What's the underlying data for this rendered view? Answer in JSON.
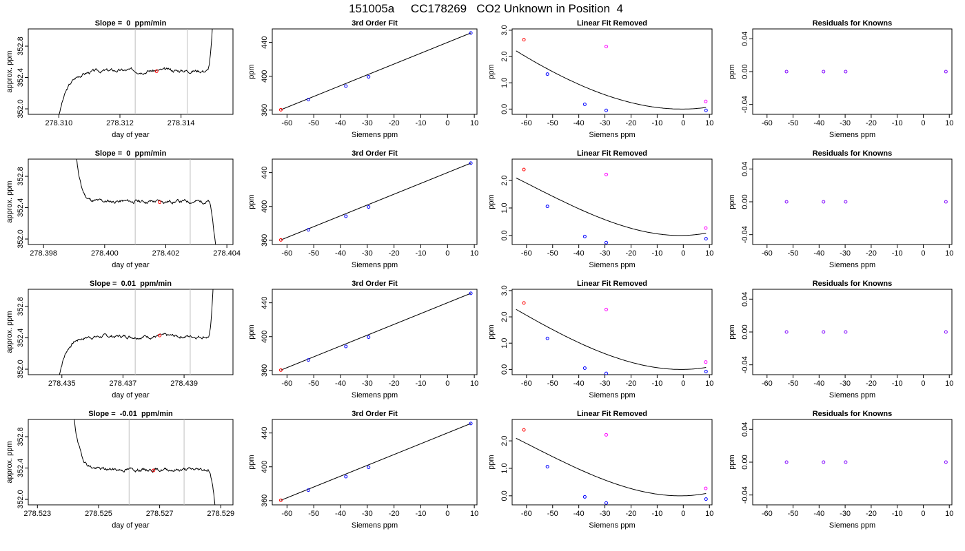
{
  "figure": {
    "title": "151005a     CC178269   CO2 Unknown in Position  4"
  },
  "styles": {
    "trace_color": "#000000",
    "point_red": "#ff0000",
    "point_blue": "#0000ff",
    "point_magenta": "#ff00ff",
    "vline_color": "#bebebe",
    "residual_point": "#7f00ff"
  },
  "chart_data": [
    {
      "type": "line",
      "panel": "time-series",
      "row": 0,
      "title": "Slope =  0  ppm/min",
      "xlabel": "day of year",
      "ylabel": "approx. ppm",
      "xlim": [
        278.309,
        278.3157
      ],
      "ylim": [
        351.93,
        353.02
      ],
      "xticks": [
        "278.310",
        "278.312",
        "278.314"
      ],
      "xtick_values": [
        278.31,
        278.312,
        278.314
      ],
      "yticks": [
        "352.0",
        "352.4",
        "352.8"
      ],
      "ytick_values": [
        352.0,
        352.4,
        352.8
      ],
      "vlines": [
        278.3125,
        278.3142
      ],
      "trace": {
        "x0": 278.31,
        "x1": 278.3151,
        "start": 351.9,
        "level": 352.49,
        "end": 353.6,
        "rise": 0.06,
        "drop": 0.05,
        "seed": 3
      },
      "point": {
        "x": 278.3132,
        "y": 352.48
      }
    },
    {
      "type": "line",
      "panel": "fit",
      "row": 0,
      "title": "3rd Order Fit",
      "xlabel": "Siemens ppm",
      "ylabel": "ppm",
      "xlim": [
        -65.5,
        11
      ],
      "ylim": [
        355,
        456
      ],
      "xticks": [
        "-60",
        "-50",
        "-40",
        "-30",
        "-20",
        "-10",
        "0",
        "10"
      ],
      "xtick_values": [
        -60,
        -50,
        -40,
        -30,
        -20,
        -10,
        0,
        10
      ],
      "yticks": [
        "360",
        "400",
        "440"
      ],
      "ytick_values": [
        360,
        400,
        440
      ],
      "line": {
        "x": [
          -62.3,
          8.7
        ],
        "y": [
          360.4,
          451.2
        ]
      },
      "points": [
        {
          "x": -62.3,
          "y": 360.4,
          "color": "red"
        },
        {
          "x": -52.0,
          "y": 372.4,
          "color": "blue"
        },
        {
          "x": -38.0,
          "y": 388.4,
          "color": "blue"
        },
        {
          "x": -29.5,
          "y": 399.4,
          "color": "blue"
        },
        {
          "x": 8.7,
          "y": 451.2,
          "color": "blue"
        }
      ]
    },
    {
      "type": "line",
      "panel": "linear-removed",
      "row": 0,
      "title": "Linear Fit Removed",
      "xlabel": "Siemens ppm",
      "ylabel": "ppm",
      "xlim": [
        -65.5,
        11
      ],
      "ylim": [
        -0.2,
        3.05
      ],
      "xticks": [
        "-60",
        "-50",
        "-40",
        "-30",
        "-20",
        "-10",
        "0",
        "10"
      ],
      "xtick_values": [
        -60,
        -50,
        -40,
        -30,
        -20,
        -10,
        0,
        10
      ],
      "yticks": [
        "0.0",
        "1.0",
        "2.0",
        "3.0"
      ],
      "ytick_values": [
        0,
        1,
        2,
        3
      ],
      "curve": {
        "c": [
          0,
          0.00076,
          0.0007,
          2.3e-06
        ],
        "x0": -64,
        "x1": 8.7
      },
      "points": [
        {
          "x": -61.0,
          "y": 2.64,
          "color": "red"
        },
        {
          "x": -52.0,
          "y": 1.33,
          "color": "blue"
        },
        {
          "x": -37.7,
          "y": 0.18,
          "color": "blue"
        },
        {
          "x": -29.5,
          "y": -0.05,
          "color": "blue"
        },
        {
          "x": 8.7,
          "y": -0.05,
          "color": "blue"
        },
        {
          "x": -29.5,
          "y": 2.38,
          "color": "magenta"
        },
        {
          "x": 8.6,
          "y": 0.29,
          "color": "magenta"
        }
      ]
    },
    {
      "type": "scatter",
      "panel": "residuals",
      "row": 0,
      "title": "Residuals for Knowns",
      "xlabel": "Siemens ppm",
      "ylabel": "ppm",
      "xlim": [
        -65.5,
        11
      ],
      "ylim": [
        -0.052,
        0.052
      ],
      "xticks": [
        "-60",
        "-50",
        "-40",
        "-30",
        "-20",
        "-10",
        "0",
        "10"
      ],
      "xtick_values": [
        -60,
        -50,
        -40,
        -30,
        -20,
        -10,
        0,
        10
      ],
      "yticks": [
        "-0.04",
        "0.00",
        "0.04"
      ],
      "ytick_values": [
        -0.04,
        0,
        0.04
      ],
      "points": [
        {
          "x": -52.5,
          "y": 0
        },
        {
          "x": -38.3,
          "y": 0
        },
        {
          "x": -29.8,
          "y": 0
        },
        {
          "x": 8.7,
          "y": 0
        }
      ]
    },
    {
      "type": "line",
      "panel": "time-series",
      "row": 1,
      "title": "Slope =  0  ppm/min",
      "xlabel": "day of year",
      "ylabel": "approx. ppm",
      "xlim": [
        278.3975,
        278.4042
      ],
      "ylim": [
        351.93,
        353.02
      ],
      "xticks": [
        "278.398",
        "278.400",
        "278.402",
        "278.404"
      ],
      "xtick_values": [
        278.398,
        278.4,
        278.402,
        278.404
      ],
      "yticks": [
        "352.0",
        "352.4",
        "352.8"
      ],
      "ytick_values": [
        352.0,
        352.4,
        352.8
      ],
      "vlines": [
        278.401,
        278.4028
      ],
      "trace": {
        "x0": 278.399,
        "x1": 278.4037,
        "start": 353.5,
        "level": 352.48,
        "end": 351.6,
        "fall": 0.03,
        "dropAt": 278.4034,
        "seed": 11
      },
      "point": {
        "x": 278.4018,
        "y": 352.47
      }
    },
    {
      "type": "line",
      "panel": "fit",
      "row": 1,
      "title": "3rd Order Fit",
      "xlabel": "Siemens ppm",
      "ylabel": "ppm",
      "xlim": [
        -65.5,
        11
      ],
      "ylim": [
        355,
        456
      ],
      "xticks": [
        "-60",
        "-50",
        "-40",
        "-30",
        "-20",
        "-10",
        "0",
        "10"
      ],
      "xtick_values": [
        -60,
        -50,
        -40,
        -30,
        -20,
        -10,
        0,
        10
      ],
      "yticks": [
        "360",
        "400",
        "440"
      ],
      "ytick_values": [
        360,
        400,
        440
      ],
      "line": {
        "x": [
          -62.3,
          8.7
        ],
        "y": [
          360.4,
          451.2
        ]
      },
      "points": [
        {
          "x": -62.3,
          "y": 360.4,
          "color": "red"
        },
        {
          "x": -52.0,
          "y": 372.4,
          "color": "blue"
        },
        {
          "x": -38.0,
          "y": 388.4,
          "color": "blue"
        },
        {
          "x": -29.5,
          "y": 399.4,
          "color": "blue"
        },
        {
          "x": 8.7,
          "y": 451.2,
          "color": "blue"
        }
      ]
    },
    {
      "type": "line",
      "panel": "linear-removed",
      "row": 1,
      "title": "Linear Fit Removed",
      "xlabel": "Siemens ppm",
      "ylabel": "ppm",
      "xlim": [
        -65.5,
        11
      ],
      "ylim": [
        -0.33,
        2.78
      ],
      "xticks": [
        "-60",
        "-50",
        "-40",
        "-30",
        "-20",
        "-10",
        "0",
        "10"
      ],
      "xtick_values": [
        -60,
        -50,
        -40,
        -30,
        -20,
        -10,
        0,
        10
      ],
      "yticks": [
        "0.0",
        "1.0",
        "2.0"
      ],
      "ytick_values": [
        0,
        1,
        2
      ],
      "curve": {
        "c": [
          0,
          0.002,
          0.00085,
          4.8e-06
        ],
        "x0": -64,
        "x1": 8.7
      },
      "points": [
        {
          "x": -61.0,
          "y": 2.4,
          "color": "red"
        },
        {
          "x": -52.0,
          "y": 1.06,
          "color": "blue"
        },
        {
          "x": -37.7,
          "y": -0.04,
          "color": "blue"
        },
        {
          "x": -29.5,
          "y": -0.26,
          "color": "blue"
        },
        {
          "x": 8.7,
          "y": -0.12,
          "color": "blue"
        },
        {
          "x": -29.5,
          "y": 2.22,
          "color": "magenta"
        },
        {
          "x": 8.6,
          "y": 0.27,
          "color": "magenta"
        }
      ]
    },
    {
      "type": "scatter",
      "panel": "residuals",
      "row": 1,
      "title": "Residuals for Knowns",
      "xlabel": "Siemens ppm",
      "ylabel": "ppm",
      "xlim": [
        -65.5,
        11
      ],
      "ylim": [
        -0.052,
        0.052
      ],
      "xticks": [
        "-60",
        "-50",
        "-40",
        "-30",
        "-20",
        "-10",
        "0",
        "10"
      ],
      "xtick_values": [
        -60,
        -50,
        -40,
        -30,
        -20,
        -10,
        0,
        10
      ],
      "yticks": [
        "-0.04",
        "0.00",
        "0.04"
      ],
      "ytick_values": [
        -0.04,
        0,
        0.04
      ],
      "points": [
        {
          "x": -52.5,
          "y": 0
        },
        {
          "x": -38.3,
          "y": 0
        },
        {
          "x": -29.8,
          "y": 0
        },
        {
          "x": 8.7,
          "y": 0
        }
      ]
    },
    {
      "type": "line",
      "panel": "time-series",
      "row": 2,
      "title": "Slope =  0.01  ppm/min",
      "xlabel": "day of year",
      "ylabel": "approx. ppm",
      "xlim": [
        278.4339,
        278.4406
      ],
      "ylim": [
        351.93,
        353.02
      ],
      "xticks": [
        "278.435",
        "278.437",
        "278.439"
      ],
      "xtick_values": [
        278.435,
        278.437,
        278.439
      ],
      "yticks": [
        "352.0",
        "352.4",
        "352.8"
      ],
      "ytick_values": [
        352.0,
        352.4,
        352.8
      ],
      "vlines": [
        278.4374,
        278.4392
      ],
      "trace": {
        "x0": 278.4349,
        "x1": 278.44,
        "start": 351.9,
        "level": 352.42,
        "end": 353.6,
        "rise": 0.05,
        "drop": 0.04,
        "seed": 7
      },
      "point": {
        "x": 278.4382,
        "y": 352.43
      }
    },
    {
      "type": "line",
      "panel": "fit",
      "row": 2,
      "title": "3rd Order Fit",
      "xlabel": "Siemens ppm",
      "ylabel": "ppm",
      "xlim": [
        -65.5,
        11
      ],
      "ylim": [
        355,
        456
      ],
      "xticks": [
        "-60",
        "-50",
        "-40",
        "-30",
        "-20",
        "-10",
        "0",
        "10"
      ],
      "xtick_values": [
        -60,
        -50,
        -40,
        -30,
        -20,
        -10,
        0,
        10
      ],
      "yticks": [
        "360",
        "400",
        "440"
      ],
      "ytick_values": [
        360,
        400,
        440
      ],
      "line": {
        "x": [
          -62.3,
          8.7
        ],
        "y": [
          360.4,
          451.2
        ]
      },
      "points": [
        {
          "x": -62.3,
          "y": 360.4,
          "color": "red"
        },
        {
          "x": -52.0,
          "y": 372.4,
          "color": "blue"
        },
        {
          "x": -38.0,
          "y": 388.4,
          "color": "blue"
        },
        {
          "x": -29.5,
          "y": 399.4,
          "color": "blue"
        },
        {
          "x": 8.7,
          "y": 451.2,
          "color": "blue"
        }
      ]
    },
    {
      "type": "line",
      "panel": "linear-removed",
      "row": 2,
      "title": "Linear Fit Removed",
      "xlabel": "Siemens ppm",
      "ylabel": "ppm",
      "xlim": [
        -65.5,
        11
      ],
      "ylim": [
        -0.2,
        3.05
      ],
      "xticks": [
        "-60",
        "-50",
        "-40",
        "-30",
        "-20",
        "-10",
        "0",
        "10"
      ],
      "xtick_values": [
        -60,
        -50,
        -40,
        -30,
        -20,
        -10,
        0,
        10
      ],
      "yticks": [
        "0.0",
        "1.0",
        "2.0",
        "3.0"
      ],
      "ytick_values": [
        0,
        1,
        2,
        3
      ],
      "curve": {
        "c": [
          0,
          0.0012,
          0.00082,
          3.8e-06
        ],
        "x0": -64,
        "x1": 8.7
      },
      "points": [
        {
          "x": -61.0,
          "y": 2.53,
          "color": "red"
        },
        {
          "x": -52.0,
          "y": 1.18,
          "color": "blue"
        },
        {
          "x": -37.7,
          "y": 0.05,
          "color": "blue"
        },
        {
          "x": -29.5,
          "y": -0.15,
          "color": "blue"
        },
        {
          "x": 8.7,
          "y": -0.08,
          "color": "blue"
        },
        {
          "x": -29.5,
          "y": 2.28,
          "color": "magenta"
        },
        {
          "x": 8.6,
          "y": 0.28,
          "color": "magenta"
        }
      ]
    },
    {
      "type": "scatter",
      "panel": "residuals",
      "row": 2,
      "title": "Residuals for Knowns",
      "xlabel": "Siemens ppm",
      "ylabel": "ppm",
      "xlim": [
        -65.5,
        11
      ],
      "ylim": [
        -0.052,
        0.052
      ],
      "xticks": [
        "-60",
        "-50",
        "-40",
        "-30",
        "-20",
        "-10",
        "0",
        "10"
      ],
      "xtick_values": [
        -60,
        -50,
        -40,
        -30,
        -20,
        -10,
        0,
        10
      ],
      "yticks": [
        "-0.04",
        "0.00",
        "0.04"
      ],
      "ytick_values": [
        -0.04,
        0,
        0.04
      ],
      "points": [
        {
          "x": -52.5,
          "y": 0
        },
        {
          "x": -38.3,
          "y": 0
        },
        {
          "x": -29.8,
          "y": 0
        },
        {
          "x": 8.7,
          "y": 0
        }
      ]
    },
    {
      "type": "line",
      "panel": "time-series",
      "row": 3,
      "title": "Slope =  -0.01  ppm/min",
      "xlabel": "day of year",
      "ylabel": "approx. ppm",
      "xlim": [
        278.5227,
        278.5294
      ],
      "ylim": [
        351.93,
        353.02
      ],
      "xticks": [
        "278.523",
        "278.525",
        "278.527",
        "278.529"
      ],
      "xtick_values": [
        278.523,
        278.525,
        278.527,
        278.529
      ],
      "yticks": [
        "352.0",
        "352.4",
        "352.8"
      ],
      "ytick_values": [
        352.0,
        352.4,
        352.8
      ],
      "vlines": [
        278.526,
        278.5278
      ],
      "trace": {
        "x0": 278.5241,
        "x1": 278.5289,
        "start": 353.5,
        "level": 352.38,
        "end": 351.6,
        "fall": 0.04,
        "dropAt": 278.5286,
        "seed": 19
      },
      "point": {
        "x": 278.5268,
        "y": 352.37
      }
    },
    {
      "type": "line",
      "panel": "fit",
      "row": 3,
      "title": "3rd Order Fit",
      "xlabel": "Siemens ppm",
      "ylabel": "ppm",
      "xlim": [
        -65.5,
        11
      ],
      "ylim": [
        355,
        456
      ],
      "xticks": [
        "-60",
        "-50",
        "-40",
        "-30",
        "-20",
        "-10",
        "0",
        "10"
      ],
      "xtick_values": [
        -60,
        -50,
        -40,
        -30,
        -20,
        -10,
        0,
        10
      ],
      "yticks": [
        "360",
        "400",
        "440"
      ],
      "ytick_values": [
        360,
        400,
        440
      ],
      "line": {
        "x": [
          -62.3,
          8.7
        ],
        "y": [
          360.4,
          451.2
        ]
      },
      "points": [
        {
          "x": -62.3,
          "y": 360.4,
          "color": "red"
        },
        {
          "x": -52.0,
          "y": 372.4,
          "color": "blue"
        },
        {
          "x": -38.0,
          "y": 388.4,
          "color": "blue"
        },
        {
          "x": -29.5,
          "y": 399.4,
          "color": "blue"
        },
        {
          "x": 8.7,
          "y": 451.2,
          "color": "blue"
        }
      ]
    },
    {
      "type": "line",
      "panel": "linear-removed",
      "row": 3,
      "title": "Linear Fit Removed",
      "xlabel": "Siemens ppm",
      "ylabel": "ppm",
      "xlim": [
        -65.5,
        11
      ],
      "ylim": [
        -0.33,
        2.78
      ],
      "xticks": [
        "-60",
        "-50",
        "-40",
        "-30",
        "-20",
        "-10",
        "0",
        "10"
      ],
      "xtick_values": [
        -60,
        -50,
        -40,
        -30,
        -20,
        -10,
        0,
        10
      ],
      "yticks": [
        "0.0",
        "1.0",
        "2.0"
      ],
      "ytick_values": [
        0,
        1,
        2
      ],
      "curve": {
        "c": [
          0,
          0.002,
          0.00085,
          4.8e-06
        ],
        "x0": -64,
        "x1": 8.7
      },
      "points": [
        {
          "x": -61.0,
          "y": 2.4,
          "color": "red"
        },
        {
          "x": -52.0,
          "y": 1.06,
          "color": "blue"
        },
        {
          "x": -37.7,
          "y": -0.04,
          "color": "blue"
        },
        {
          "x": -29.5,
          "y": -0.26,
          "color": "blue"
        },
        {
          "x": 8.7,
          "y": -0.12,
          "color": "blue"
        },
        {
          "x": -29.5,
          "y": 2.22,
          "color": "magenta"
        },
        {
          "x": 8.6,
          "y": 0.27,
          "color": "magenta"
        }
      ]
    },
    {
      "type": "scatter",
      "panel": "residuals",
      "row": 3,
      "title": "Residuals for Knowns",
      "xlabel": "Siemens ppm",
      "ylabel": "ppm",
      "xlim": [
        -65.5,
        11
      ],
      "ylim": [
        -0.052,
        0.052
      ],
      "xticks": [
        "-60",
        "-50",
        "-40",
        "-30",
        "-20",
        "-10",
        "0",
        "10"
      ],
      "xtick_values": [
        -60,
        -50,
        -40,
        -30,
        -20,
        -10,
        0,
        10
      ],
      "yticks": [
        "-0.04",
        "0.00",
        "0.04"
      ],
      "ytick_values": [
        -0.04,
        0,
        0.04
      ],
      "points": [
        {
          "x": -52.5,
          "y": 0
        },
        {
          "x": -38.3,
          "y": 0
        },
        {
          "x": -29.8,
          "y": 0
        },
        {
          "x": 8.7,
          "y": 0
        }
      ]
    }
  ]
}
